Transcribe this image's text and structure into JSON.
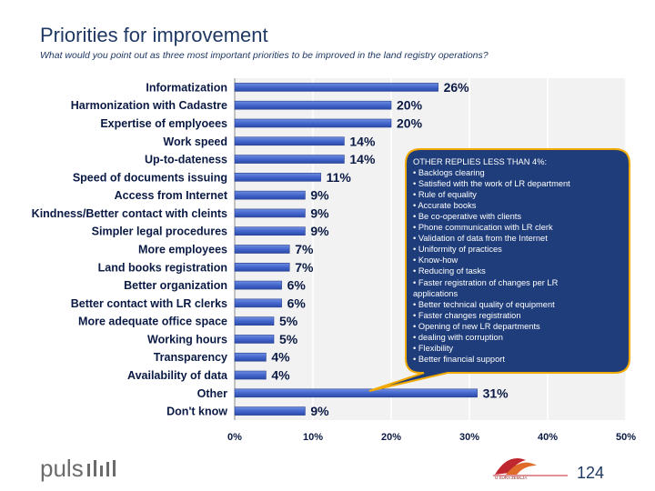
{
  "slide": {
    "title": "Priorities for improvement",
    "subtitle": "What would you point out as three most important priorities to be improved in the land registry operations?",
    "page_number": "124",
    "brand": "puls",
    "partner_name": "U SURA ZEMLJA"
  },
  "callout": {
    "heading": "OTHER REPLIES LESS THAN 4%:",
    "items": [
      "• Backlogs clearing",
      "• Satisfied with the work of LR department",
      "• Rule of equality",
      "• Accurate books",
      "• Be co-operative with clients",
      "• Phone communication with LR clerk",
      "• Validation of data from the Internet",
      "• Uniformity of practices",
      "• Know-how",
      "• Reducing of tasks",
      "• Faster registration of changes per LR",
      "applications",
      "• Better technical quality of equipment",
      "• Faster changes registration",
      "• Opening of new LR departments",
      "• dealing with corruption",
      "• Flexibility",
      "• Better financial support"
    ],
    "fill_color": "#1f3d7a",
    "border_color": "#f2a900"
  },
  "chart_data": {
    "type": "bar",
    "orientation": "horizontal",
    "categories": [
      "Informatization",
      "Harmonization with Cadastre",
      "Expertise of emplyoees",
      "Work speed",
      "Up-to-dateness",
      "Speed of documents issuing",
      "Access from Internet",
      "Kindness/Better contact with cleints",
      "Simpler legal procedures",
      "More employees",
      "Land books registration",
      "Better organization",
      "Better contact with LR clerks",
      "More adequate office space",
      "Working hours",
      "Transparency",
      "Availability of data",
      "Other",
      "Don't know"
    ],
    "values": [
      26,
      20,
      20,
      14,
      14,
      11,
      9,
      9,
      9,
      7,
      7,
      6,
      6,
      5,
      5,
      4,
      4,
      31,
      9
    ],
    "value_labels": [
      "26%",
      "20%",
      "20%",
      "14%",
      "14%",
      "11%",
      "9%",
      "9%",
      "9%",
      "7%",
      "7%",
      "6%",
      "6%",
      "5%",
      "5%",
      "4%",
      "4%",
      "31%",
      "9%"
    ],
    "xlim": [
      0,
      50
    ],
    "x_ticks": [
      0,
      10,
      20,
      30,
      40,
      50
    ],
    "x_tick_labels": [
      "0%",
      "10%",
      "20%",
      "30%",
      "40%",
      "50%"
    ],
    "bar_color": "#4466cc",
    "plot_background": "#f2f2f2",
    "grid": true
  }
}
